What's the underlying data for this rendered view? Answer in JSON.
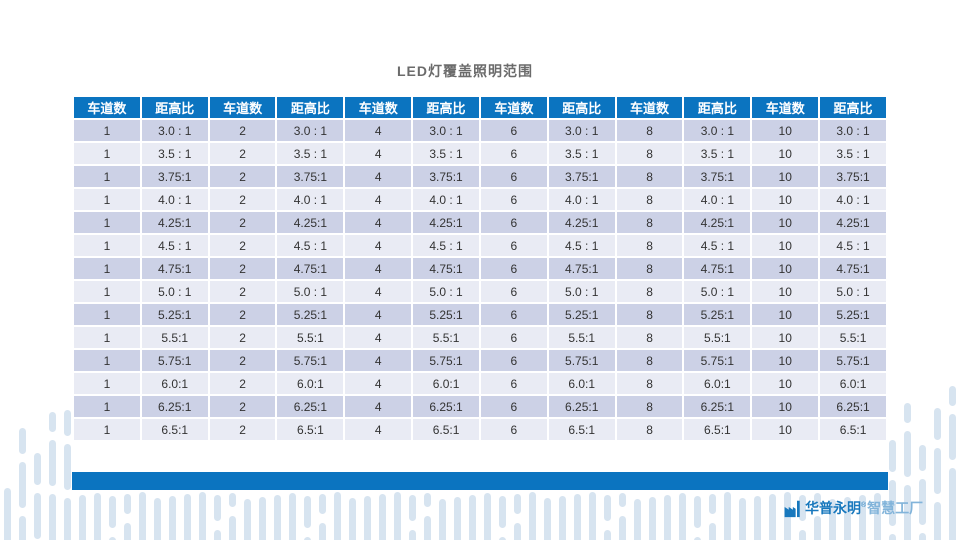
{
  "title": "LED灯覆盖照明范围",
  "chart_data": {
    "type": "table",
    "title": "LED灯覆盖照明范围",
    "columns": [
      "车道数",
      "距高比",
      "车道数",
      "距高比",
      "车道数",
      "距高比",
      "车道数",
      "距高比",
      "车道数",
      "距高比",
      "车道数",
      "距高比"
    ],
    "lanes": [
      "1",
      "2",
      "4",
      "6",
      "8",
      "10"
    ],
    "ratios": [
      "3.0 : 1",
      "3.5 : 1",
      "3.75:1",
      "4.0 : 1",
      "4.25:1",
      "4.5 : 1",
      "4.75:1",
      "5.0 : 1",
      "5.25:1",
      "5.5:1",
      "5.75:1",
      "6.0:1",
      "6.25:1",
      "6.5:1"
    ],
    "rows": [
      [
        "1",
        "3.0 : 1",
        "2",
        "3.0 : 1",
        "4",
        "3.0 : 1",
        "6",
        "3.0 : 1",
        "8",
        "3.0 : 1",
        "10",
        "3.0 : 1"
      ],
      [
        "1",
        "3.5 : 1",
        "2",
        "3.5 : 1",
        "4",
        "3.5 : 1",
        "6",
        "3.5 : 1",
        "8",
        "3.5 : 1",
        "10",
        "3.5 : 1"
      ],
      [
        "1",
        "3.75:1",
        "2",
        "3.75:1",
        "4",
        "3.75:1",
        "6",
        "3.75:1",
        "8",
        "3.75:1",
        "10",
        "3.75:1"
      ],
      [
        "1",
        "4.0 : 1",
        "2",
        "4.0 : 1",
        "4",
        "4.0 : 1",
        "6",
        "4.0 : 1",
        "8",
        "4.0 : 1",
        "10",
        "4.0 : 1"
      ],
      [
        "1",
        "4.25:1",
        "2",
        "4.25:1",
        "4",
        "4.25:1",
        "6",
        "4.25:1",
        "8",
        "4.25:1",
        "10",
        "4.25:1"
      ],
      [
        "1",
        "4.5 : 1",
        "2",
        "4.5 : 1",
        "4",
        "4.5 : 1",
        "6",
        "4.5 : 1",
        "8",
        "4.5 : 1",
        "10",
        "4.5 : 1"
      ],
      [
        "1",
        "4.75:1",
        "2",
        "4.75:1",
        "4",
        "4.75:1",
        "6",
        "4.75:1",
        "8",
        "4.75:1",
        "10",
        "4.75:1"
      ],
      [
        "1",
        "5.0 : 1",
        "2",
        "5.0 : 1",
        "4",
        "5.0 : 1",
        "6",
        "5.0 : 1",
        "8",
        "5.0 : 1",
        "10",
        "5.0 : 1"
      ],
      [
        "1",
        "5.25:1",
        "2",
        "5.25:1",
        "4",
        "5.25:1",
        "6",
        "5.25:1",
        "8",
        "5.25:1",
        "10",
        "5.25:1"
      ],
      [
        "1",
        "5.5:1",
        "2",
        "5.5:1",
        "4",
        "5.5:1",
        "6",
        "5.5:1",
        "8",
        "5.5:1",
        "10",
        "5.5:1"
      ],
      [
        "1",
        "5.75:1",
        "2",
        "5.75:1",
        "4",
        "5.75:1",
        "6",
        "5.75:1",
        "8",
        "5.75:1",
        "10",
        "5.75:1"
      ],
      [
        "1",
        "6.0:1",
        "2",
        "6.0:1",
        "4",
        "6.0:1",
        "6",
        "6.0:1",
        "8",
        "6.0:1",
        "10",
        "6.0:1"
      ],
      [
        "1",
        "6.25:1",
        "2",
        "6.25:1",
        "4",
        "6.25:1",
        "6",
        "6.25:1",
        "8",
        "6.25:1",
        "10",
        "6.25:1"
      ],
      [
        "1",
        "6.5:1",
        "2",
        "6.5:1",
        "4",
        "6.5:1",
        "6",
        "6.5:1",
        "8",
        "6.5:1",
        "10",
        "6.5:1"
      ]
    ]
  },
  "footer": {
    "brand_name": "华普永明",
    "brand_reg": "®",
    "brand_suffix": "智慧工厂"
  },
  "colors": {
    "accent_blue": "#0b74c0",
    "row_dark": "#ccd1e6",
    "row_light": "#e9ebf4",
    "deco_blue": "#d7e4f0",
    "brand_dark": "#1878bd",
    "brand_light": "#82b4da",
    "title_gray": "#6b6b6b"
  }
}
